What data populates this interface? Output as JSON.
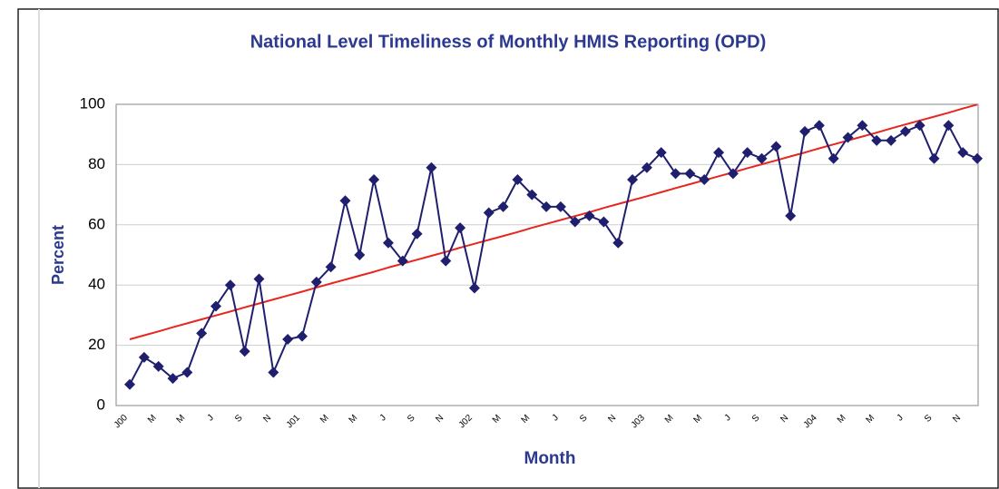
{
  "chart_data": {
    "type": "line",
    "title": "National Level Timeliness of Monthly HMIS Reporting (OPD)",
    "x_label": "Month",
    "y_label": "Percent",
    "categories": [
      "J00",
      null,
      "M",
      null,
      "M",
      null,
      "J",
      null,
      "S",
      null,
      "N",
      null,
      "J01",
      null,
      "M",
      null,
      "M",
      null,
      "J",
      null,
      "S",
      null,
      "N",
      null,
      "J02",
      null,
      "M",
      null,
      "M",
      null,
      "J",
      null,
      "S",
      null,
      "N",
      null,
      "J03",
      null,
      "M",
      null,
      "M",
      null,
      "J",
      null,
      "S",
      null,
      "N",
      null,
      "J04",
      null,
      "M",
      null,
      "M",
      null,
      "J",
      null,
      "S",
      null,
      "N",
      null
    ],
    "series": [
      {
        "color": "#1f1f6e",
        "marker": "diamond",
        "values": [
          7,
          16,
          13,
          9,
          11,
          24,
          33,
          40,
          18,
          42,
          11,
          22,
          23,
          41,
          46,
          68,
          50,
          75,
          54,
          48,
          57,
          79,
          48,
          59,
          39,
          64,
          66,
          75,
          70,
          66,
          66,
          61,
          63,
          61,
          54,
          75,
          79,
          84,
          77,
          77,
          75,
          84,
          77,
          84,
          82,
          86,
          63,
          91,
          93,
          82,
          89,
          93,
          88,
          88,
          91,
          93,
          82,
          93,
          84,
          82
        ]
      },
      {
        "color": "#e8261f",
        "marker": "none",
        "values": [
          22.0,
          23.3,
          24.6,
          26.0,
          27.3,
          28.6,
          29.9,
          31.2,
          32.6,
          33.9,
          35.2,
          36.5,
          37.8,
          39.2,
          40.5,
          41.8,
          43.1,
          44.4,
          45.8,
          47.1,
          48.4,
          49.7,
          51.0,
          52.4,
          53.7,
          55.0,
          56.3,
          57.6,
          59.0,
          60.3,
          61.6,
          62.9,
          64.2,
          65.6,
          66.9,
          68.2,
          69.5,
          70.8,
          72.2,
          73.5,
          74.8,
          76.1,
          77.4,
          78.8,
          80.1,
          81.4,
          82.7,
          84.0,
          85.4,
          86.7,
          88.0,
          89.3,
          90.6,
          92.0,
          93.3,
          94.6,
          95.9,
          97.2,
          98.6,
          99.9
        ]
      }
    ],
    "ylim": [
      0,
      100
    ],
    "yticks": [
      0,
      20,
      40,
      60,
      80,
      100
    ],
    "grid": true
  }
}
